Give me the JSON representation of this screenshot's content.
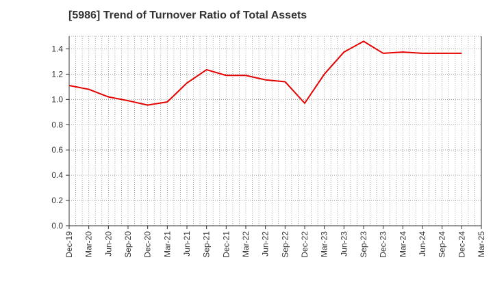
{
  "chart_data": {
    "type": "line",
    "title": "[5986]  Trend of Turnover Ratio of Total Assets",
    "xlabel": "",
    "ylabel": "",
    "ylim": [
      0,
      1.5
    ],
    "y_ticks": [
      0.0,
      0.2,
      0.4,
      0.6,
      0.8,
      1.0,
      1.2,
      1.4
    ],
    "y_tick_labels": [
      "0.0",
      "0.2",
      "0.4",
      "0.6",
      "0.8",
      "1.0",
      "1.2",
      "1.4"
    ],
    "x_tick_labels": [
      "Dec-19",
      "Mar-20",
      "Jun-20",
      "Sep-20",
      "Dec-20",
      "Mar-21",
      "Jun-21",
      "Sep-21",
      "Dec-21",
      "Mar-22",
      "Jun-22",
      "Sep-22",
      "Dec-22",
      "Mar-23",
      "Jun-23",
      "Sep-23",
      "Dec-23",
      "Mar-24",
      "Jun-24",
      "Sep-24",
      "Dec-24",
      "Mar-25"
    ],
    "grid": true,
    "series": [
      {
        "color": "#e60000",
        "x": [
          "Dec-19",
          "Mar-20",
          "Jun-20",
          "Sep-20",
          "Dec-20",
          "Mar-21",
          "Jun-21",
          "Sep-21",
          "Dec-21",
          "Mar-22",
          "Jun-22",
          "Sep-22",
          "Dec-22",
          "Mar-23",
          "Jun-23",
          "Sep-23",
          "Dec-23",
          "Mar-24",
          "Jun-24",
          "Sep-24",
          "Dec-24"
        ],
        "values": [
          1.11,
          1.08,
          1.02,
          0.99,
          0.955,
          0.98,
          1.13,
          1.235,
          1.19,
          1.19,
          1.155,
          1.14,
          0.97,
          1.2,
          1.375,
          1.46,
          1.365,
          1.375,
          1.365,
          1.365,
          1.365
        ]
      }
    ]
  }
}
